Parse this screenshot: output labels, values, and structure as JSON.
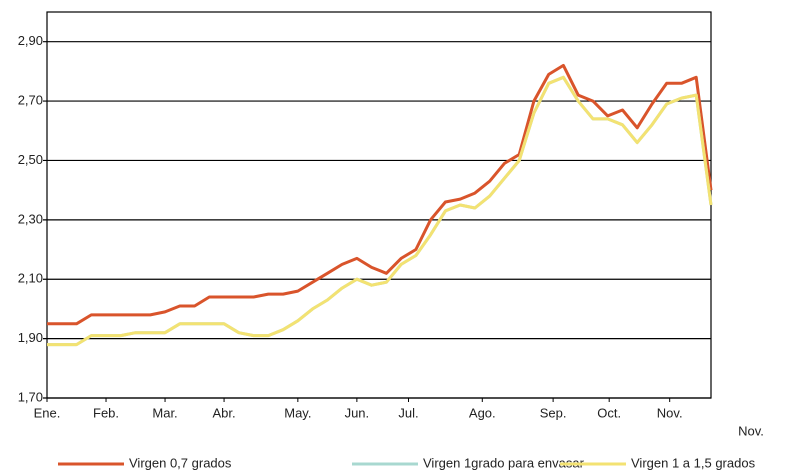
{
  "chart_data": {
    "type": "line",
    "x": [
      0,
      1,
      2,
      3,
      4,
      5,
      6,
      7,
      8,
      9,
      10,
      11,
      12,
      13,
      14,
      15,
      16,
      17,
      18,
      19,
      20,
      21,
      22,
      23,
      24,
      25,
      26,
      27,
      28,
      29,
      30,
      31,
      32,
      33,
      34,
      35,
      36,
      37,
      38,
      39,
      40,
      41,
      42,
      43,
      44,
      45
    ],
    "series": [
      {
        "name": "Virgen 0,7 grados",
        "color": "#d9542b",
        "values": [
          1.95,
          1.95,
          1.95,
          1.98,
          1.98,
          1.98,
          1.98,
          1.98,
          1.99,
          2.01,
          2.01,
          2.04,
          2.04,
          2.04,
          2.04,
          2.05,
          2.05,
          2.06,
          2.09,
          2.12,
          2.15,
          2.17,
          2.14,
          2.12,
          2.17,
          2.2,
          2.3,
          2.36,
          2.37,
          2.39,
          2.43,
          2.49,
          2.52,
          2.7,
          2.79,
          2.82,
          2.72,
          2.7,
          2.65,
          2.67,
          2.61,
          2.69,
          2.76,
          2.76,
          2.78,
          2.4
        ]
      },
      {
        "name": "Virgen 1grado para envasar",
        "color": "#a8d8d0",
        "values": [
          1.88,
          1.88,
          1.88,
          1.91,
          1.91,
          1.91,
          1.92,
          1.92,
          1.92,
          1.95,
          1.95,
          1.95,
          1.95,
          1.92,
          1.91,
          1.91,
          1.93,
          1.96,
          2.0,
          2.03,
          2.07,
          2.1,
          2.08,
          2.09,
          2.15,
          2.18,
          2.25,
          2.33,
          2.35,
          2.34,
          2.38,
          2.44,
          2.5,
          2.66,
          2.76,
          2.78,
          2.7,
          2.64,
          2.64,
          2.62,
          2.56,
          2.62,
          2.69,
          2.71,
          2.72,
          2.35
        ]
      },
      {
        "name": "Virgen 1 a 1,5 grados",
        "color": "#f3e272",
        "values": [
          1.88,
          1.88,
          1.88,
          1.91,
          1.91,
          1.91,
          1.92,
          1.92,
          1.92,
          1.95,
          1.95,
          1.95,
          1.95,
          1.92,
          1.91,
          1.91,
          1.93,
          1.96,
          2.0,
          2.03,
          2.07,
          2.1,
          2.08,
          2.09,
          2.15,
          2.18,
          2.25,
          2.33,
          2.35,
          2.34,
          2.38,
          2.44,
          2.5,
          2.66,
          2.76,
          2.78,
          2.7,
          2.64,
          2.64,
          2.62,
          2.56,
          2.62,
          2.69,
          2.71,
          2.72,
          2.35
        ]
      }
    ],
    "xlim": [
      0,
      45
    ],
    "xticks": [
      {
        "value": 0,
        "label": "Ene."
      },
      {
        "value": 4,
        "label": "Feb."
      },
      {
        "value": 8,
        "label": "Mar."
      },
      {
        "value": 12,
        "label": "Abr."
      },
      {
        "value": 17,
        "label": "May."
      },
      {
        "value": 21,
        "label": "Jun."
      },
      {
        "value": 24.5,
        "label": "Jul."
      },
      {
        "value": 29.5,
        "label": "Ago."
      },
      {
        "value": 34.3,
        "label": "Sep."
      },
      {
        "value": 38.1,
        "label": "Oct."
      },
      {
        "value": 42.2,
        "label": "Nov."
      }
    ],
    "extra_label": "Nov.",
    "ylim": [
      1.7,
      3.0
    ],
    "yticks": [
      {
        "value": 1.7,
        "label": "1,70"
      },
      {
        "value": 1.9,
        "label": "1,90"
      },
      {
        "value": 2.1,
        "label": "2,10"
      },
      {
        "value": 2.3,
        "label": "2,30"
      },
      {
        "value": 2.5,
        "label": "2,50"
      },
      {
        "value": 2.7,
        "label": "2,70"
      },
      {
        "value": 2.9,
        "label": "2,90"
      }
    ],
    "grid": true,
    "legend": "bottom"
  }
}
